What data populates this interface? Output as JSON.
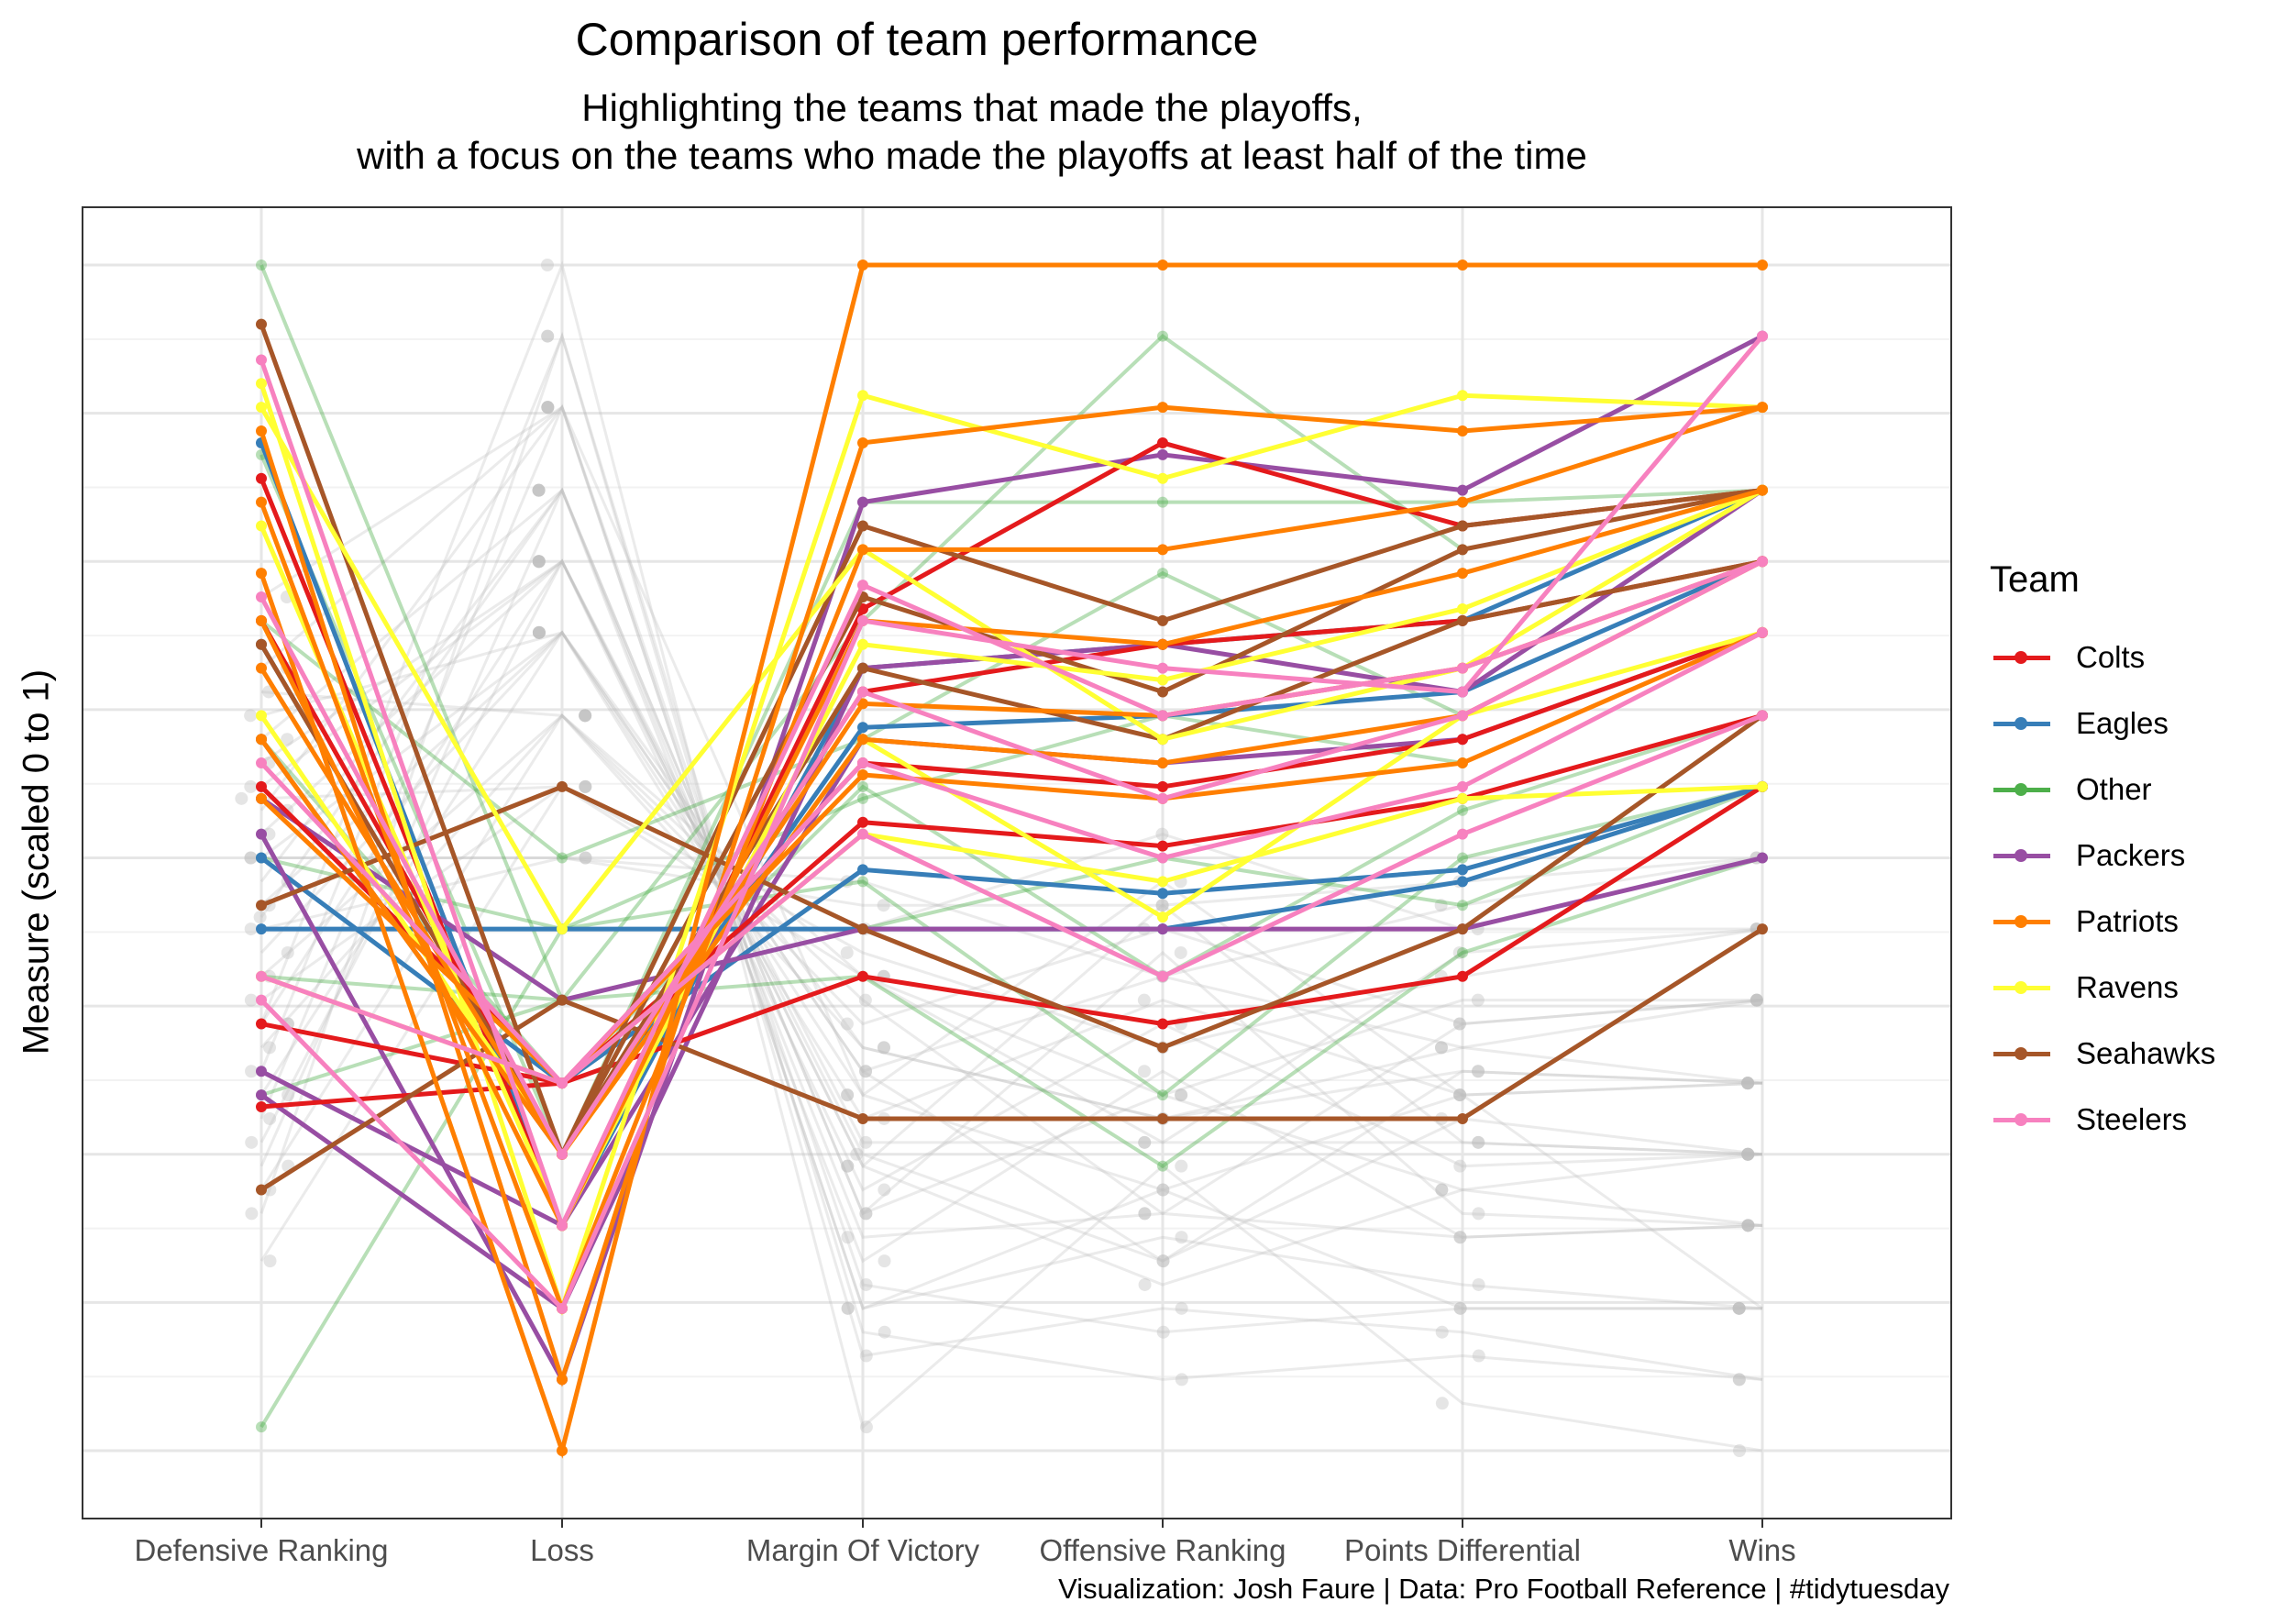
{
  "chart_data": {
    "type": "line",
    "title": "Comparison of team performance",
    "subtitle": [
      "Highlighting the teams that made the playoffs,",
      "with a focus on the teams who made the playoffs at least half of the time"
    ],
    "xlabel": "",
    "ylabel": "Measure (scaled 0 to 1)",
    "caption": "Visualization: Josh Faure | Data: Pro Football Reference | #tidytuesday",
    "categories": [
      "Defensive Ranking",
      "Loss",
      "Margin Of Victory",
      "Offensive Ranking",
      "Points Differential",
      "Wins"
    ],
    "ylim": [
      0,
      1
    ],
    "grid": true,
    "legend": {
      "title": "Team",
      "placement": "right"
    },
    "colors": {
      "Colts": "#E41A1C",
      "Eagles": "#377EB8",
      "Other": "#4DAF4A",
      "Packers": "#984EA3",
      "Patriots": "#FF7F00",
      "Ravens": "#FFFF33",
      "Seahawks": "#A65628",
      "Steelers": "#F781BF",
      "non_playoff": "#BEBEBE"
    },
    "series": [
      {
        "name": "Patriots",
        "values": [
          0.74,
          0.0,
          1.0,
          1.0,
          1.0,
          1.0
        ]
      },
      {
        "name": "Patriots",
        "values": [
          0.86,
          0.06,
          0.85,
          0.88,
          0.86,
          0.88
        ]
      },
      {
        "name": "Patriots",
        "values": [
          0.8,
          0.12,
          0.76,
          0.76,
          0.8,
          0.88
        ]
      },
      {
        "name": "Patriots",
        "values": [
          0.7,
          0.19,
          0.7,
          0.68,
          0.74,
          0.81
        ]
      },
      {
        "name": "Patriots",
        "values": [
          0.6,
          0.25,
          0.63,
          0.62,
          0.66,
          0.75
        ]
      },
      {
        "name": "Patriots",
        "values": [
          0.66,
          0.25,
          0.6,
          0.58,
          0.62,
          0.75
        ]
      },
      {
        "name": "Patriots",
        "values": [
          0.55,
          0.31,
          0.57,
          0.55,
          0.58,
          0.69
        ]
      },
      {
        "name": "Colts",
        "values": [
          0.82,
          0.19,
          0.71,
          0.85,
          0.78,
          0.81
        ]
      },
      {
        "name": "Colts",
        "values": [
          0.7,
          0.25,
          0.64,
          0.68,
          0.7,
          0.75
        ]
      },
      {
        "name": "Colts",
        "values": [
          0.56,
          0.31,
          0.58,
          0.56,
          0.6,
          0.69
        ]
      },
      {
        "name": "Colts",
        "values": [
          0.36,
          0.31,
          0.4,
          0.36,
          0.4,
          0.56
        ]
      },
      {
        "name": "Colts",
        "values": [
          0.29,
          0.31,
          0.53,
          0.51,
          0.55,
          0.62
        ]
      },
      {
        "name": "Eagles",
        "values": [
          0.85,
          0.19,
          0.66,
          0.68,
          0.7,
          0.81
        ]
      },
      {
        "name": "Eagles",
        "values": [
          0.68,
          0.25,
          0.61,
          0.62,
          0.64,
          0.75
        ]
      },
      {
        "name": "Eagles",
        "values": [
          0.5,
          0.31,
          0.49,
          0.47,
          0.49,
          0.56
        ]
      },
      {
        "name": "Eagles",
        "values": [
          0.44,
          0.44,
          0.44,
          0.44,
          0.48,
          0.56
        ]
      },
      {
        "name": "Packers",
        "values": [
          0.52,
          0.06,
          0.8,
          0.84,
          0.81,
          0.94
        ]
      },
      {
        "name": "Packers",
        "values": [
          0.3,
          0.12,
          0.66,
          0.68,
          0.64,
          0.81
        ]
      },
      {
        "name": "Packers",
        "values": [
          0.32,
          0.19,
          0.6,
          0.58,
          0.6,
          0.69
        ]
      },
      {
        "name": "Packers",
        "values": [
          0.55,
          0.38,
          0.44,
          0.44,
          0.44,
          0.5
        ]
      },
      {
        "name": "Ravens",
        "values": [
          0.9,
          0.12,
          0.89,
          0.82,
          0.89,
          0.88
        ]
      },
      {
        "name": "Ravens",
        "values": [
          0.78,
          0.19,
          0.68,
          0.65,
          0.71,
          0.81
        ]
      },
      {
        "name": "Ravens",
        "values": [
          0.62,
          0.25,
          0.6,
          0.45,
          0.62,
          0.69
        ]
      },
      {
        "name": "Ravens",
        "values": [
          0.4,
          0.31,
          0.52,
          0.48,
          0.55,
          0.56
        ]
      },
      {
        "name": "Ravens",
        "values": [
          0.88,
          0.44,
          0.76,
          0.6,
          0.66,
          0.81
        ]
      },
      {
        "name": "Seahawks",
        "values": [
          0.95,
          0.25,
          0.78,
          0.7,
          0.78,
          0.81
        ]
      },
      {
        "name": "Seahawks",
        "values": [
          0.6,
          0.25,
          0.72,
          0.64,
          0.76,
          0.81
        ]
      },
      {
        "name": "Seahawks",
        "values": [
          0.22,
          0.38,
          0.28,
          0.28,
          0.28,
          0.44
        ]
      },
      {
        "name": "Seahawks",
        "values": [
          0.46,
          0.56,
          0.44,
          0.34,
          0.44,
          0.62
        ]
      },
      {
        "name": "Seahawks",
        "values": [
          0.68,
          0.25,
          0.66,
          0.6,
          0.7,
          0.75
        ]
      },
      {
        "name": "Steelers",
        "values": [
          0.92,
          0.19,
          0.73,
          0.62,
          0.66,
          0.75
        ]
      },
      {
        "name": "Steelers",
        "values": [
          0.38,
          0.12,
          0.7,
          0.66,
          0.64,
          0.94
        ]
      },
      {
        "name": "Steelers",
        "values": [
          0.72,
          0.25,
          0.64,
          0.55,
          0.62,
          0.75
        ]
      },
      {
        "name": "Steelers",
        "values": [
          0.58,
          0.31,
          0.58,
          0.5,
          0.56,
          0.69
        ]
      },
      {
        "name": "Steelers",
        "values": [
          0.4,
          0.31,
          0.52,
          0.4,
          0.52,
          0.62
        ]
      },
      {
        "name": "Other",
        "values": [
          1.0,
          0.38,
          0.7,
          0.94,
          0.76,
          0.81
        ]
      },
      {
        "name": "Other",
        "values": [
          0.02,
          0.44,
          0.55,
          0.62,
          0.58,
          0.69
        ]
      },
      {
        "name": "Other",
        "values": [
          0.7,
          0.5,
          0.6,
          0.74,
          0.62,
          0.75
        ]
      },
      {
        "name": "Other",
        "values": [
          0.5,
          0.44,
          0.48,
          0.3,
          0.5,
          0.56
        ]
      },
      {
        "name": "Other",
        "values": [
          0.6,
          0.31,
          0.56,
          0.4,
          0.54,
          0.62
        ]
      },
      {
        "name": "Other",
        "values": [
          0.4,
          0.38,
          0.44,
          0.5,
          0.46,
          0.56
        ]
      },
      {
        "name": "Other",
        "values": [
          0.84,
          0.25,
          0.8,
          0.8,
          0.8,
          0.81
        ]
      },
      {
        "name": "Other",
        "values": [
          0.3,
          0.38,
          0.4,
          0.24,
          0.42,
          0.5
        ]
      }
    ],
    "non_playoff_note": "",
    "background_teams": [
      [
        0.66,
        0.88,
        0.3,
        0.22,
        0.3,
        0.12
      ],
      [
        0.45,
        0.81,
        0.2,
        0.3,
        0.22,
        0.19
      ],
      [
        0.58,
        0.75,
        0.25,
        0.16,
        0.28,
        0.25
      ],
      [
        0.3,
        0.69,
        0.32,
        0.4,
        0.34,
        0.31
      ],
      [
        0.4,
        0.62,
        0.4,
        0.3,
        0.38,
        0.38
      ],
      [
        0.55,
        0.56,
        0.44,
        0.52,
        0.44,
        0.44
      ],
      [
        0.2,
        0.94,
        0.08,
        0.12,
        0.1,
        0.06
      ],
      [
        0.36,
        1.0,
        0.02,
        0.24,
        0.04,
        0.0
      ],
      [
        0.5,
        0.5,
        0.46,
        0.46,
        0.48,
        0.5
      ],
      [
        0.62,
        0.69,
        0.34,
        0.28,
        0.32,
        0.31
      ],
      [
        0.26,
        0.75,
        0.22,
        0.36,
        0.24,
        0.25
      ],
      [
        0.48,
        0.81,
        0.18,
        0.2,
        0.18,
        0.19
      ],
      [
        0.34,
        0.62,
        0.36,
        0.44,
        0.36,
        0.38
      ],
      [
        0.72,
        0.88,
        0.14,
        0.1,
        0.12,
        0.12
      ],
      [
        0.16,
        0.56,
        0.42,
        0.34,
        0.4,
        0.44
      ],
      [
        0.52,
        0.75,
        0.26,
        0.26,
        0.26,
        0.25
      ],
      [
        0.42,
        0.69,
        0.3,
        0.48,
        0.3,
        0.31
      ],
      [
        0.28,
        0.88,
        0.12,
        0.18,
        0.14,
        0.12
      ],
      [
        0.64,
        0.62,
        0.38,
        0.2,
        0.36,
        0.38
      ],
      [
        0.24,
        0.81,
        0.16,
        0.32,
        0.18,
        0.19
      ],
      [
        0.46,
        0.69,
        0.28,
        0.38,
        0.3,
        0.31
      ],
      [
        0.38,
        0.56,
        0.4,
        0.26,
        0.42,
        0.44
      ],
      [
        0.56,
        0.75,
        0.24,
        0.14,
        0.22,
        0.25
      ],
      [
        0.32,
        0.94,
        0.1,
        0.06,
        0.08,
        0.06
      ],
      [
        0.6,
        0.81,
        0.2,
        0.42,
        0.2,
        0.19
      ],
      [
        0.44,
        0.5,
        0.48,
        0.4,
        0.46,
        0.5
      ],
      [
        0.22,
        0.62,
        0.34,
        0.28,
        0.34,
        0.38
      ],
      [
        0.54,
        0.88,
        0.12,
        0.22,
        0.12,
        0.12
      ],
      [
        0.36,
        0.75,
        0.24,
        0.46,
        0.26,
        0.25
      ],
      [
        0.5,
        0.69,
        0.32,
        0.16,
        0.32,
        0.31
      ]
    ]
  }
}
